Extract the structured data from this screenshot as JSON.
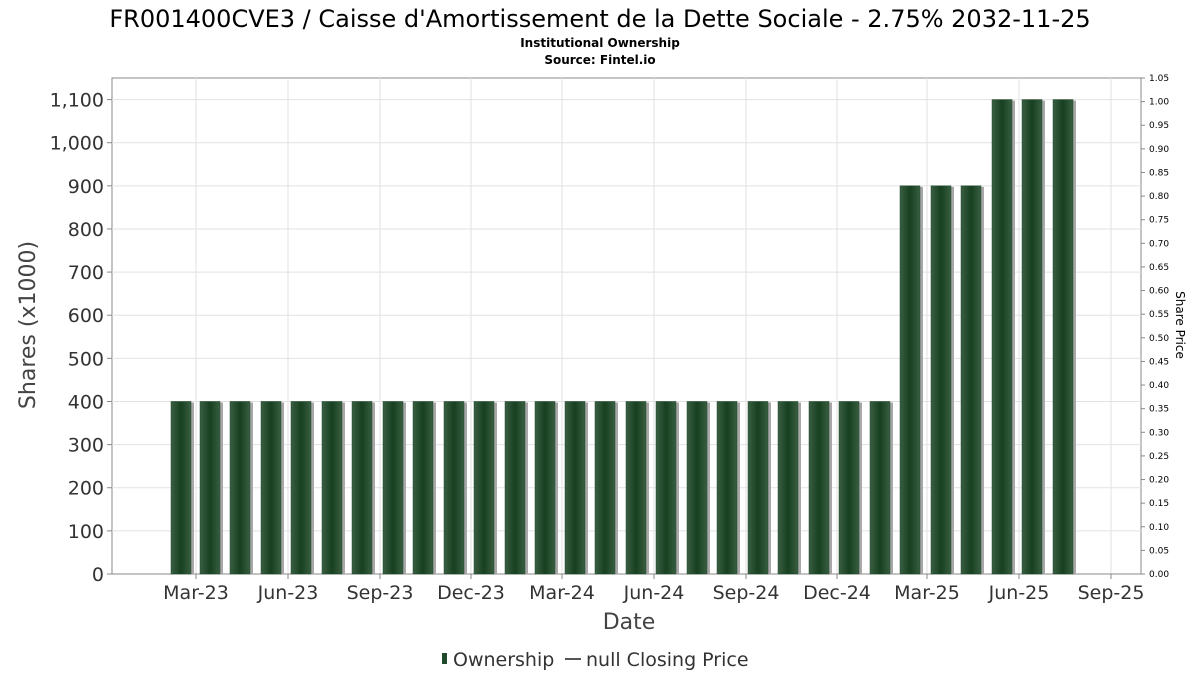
{
  "colors": {
    "bar": "#1f4a2b",
    "bar_light": "#3a5e43",
    "bar_shadow": "#a8a8a8",
    "grid": "#e2e2e2",
    "plot_border": "#888888",
    "background": "#ffffff"
  },
  "chart_data": {
    "type": "bar",
    "title": "FR001400CVE3 / Caisse d'Amortissement de la Dette Sociale - 2.75% 2032-11-25",
    "subtitle_lines": [
      "Institutional Ownership",
      "Source: Fintel.io"
    ],
    "xlabel": "Date",
    "ylabel": "Shares (x1000)",
    "y2label": "Share Price",
    "ylim": [
      0,
      1150
    ],
    "y2lim": [
      0,
      1.05
    ],
    "y_ticks": [
      0,
      100,
      200,
      300,
      400,
      500,
      600,
      700,
      800,
      900,
      1000,
      1100
    ],
    "y_tick_labels": [
      "0",
      "100",
      "200",
      "300",
      "400",
      "500",
      "600",
      "700",
      "800",
      "900",
      "1,000",
      "1,100"
    ],
    "y2_ticks": [
      0.0,
      0.05,
      0.1,
      0.15,
      0.2,
      0.25,
      0.3,
      0.35,
      0.4,
      0.45,
      0.5,
      0.55,
      0.6,
      0.65,
      0.7,
      0.75,
      0.8,
      0.85,
      0.9,
      0.95,
      1.0,
      1.05
    ],
    "y2_tick_labels": [
      "0.00",
      "0.05",
      "0.10",
      "0.15",
      "0.20",
      "0.25",
      "0.30",
      "0.35",
      "0.40",
      "0.45",
      "0.50",
      "0.55",
      "0.60",
      "0.65",
      "0.70",
      "0.75",
      "0.80",
      "0.85",
      "0.90",
      "0.95",
      "1.00",
      "1.05"
    ],
    "x_range": [
      "2022-12-07",
      "2025-10-01"
    ],
    "x_tick_dates": [
      "2023-03-01",
      "2023-06-01",
      "2023-09-01",
      "2023-12-01",
      "2024-03-01",
      "2024-06-01",
      "2024-09-01",
      "2024-12-01",
      "2025-03-01",
      "2025-06-01",
      "2025-09-01"
    ],
    "x_tick_labels": [
      "Mar-23",
      "Jun-23",
      "Sep-23",
      "Dec-23",
      "Mar-24",
      "Jun-24",
      "Sep-24",
      "Dec-24",
      "Mar-25",
      "Jun-25",
      "Sep-25"
    ],
    "grid": true,
    "legend_position": "bottom-center",
    "legend": [
      {
        "name": "Ownership",
        "marker": "bar"
      },
      {
        "name": "null Closing Price",
        "marker": "line"
      }
    ],
    "series": [
      {
        "name": "Ownership",
        "dates": [
          "2023-02-14",
          "2023-03-15",
          "2023-04-14",
          "2023-05-15",
          "2023-06-14",
          "2023-07-15",
          "2023-08-14",
          "2023-09-14",
          "2023-10-14",
          "2023-11-14",
          "2023-12-14",
          "2024-01-14",
          "2024-02-13",
          "2024-03-14",
          "2024-04-13",
          "2024-05-14",
          "2024-06-13",
          "2024-07-14",
          "2024-08-13",
          "2024-09-13",
          "2024-10-13",
          "2024-11-13",
          "2024-12-13",
          "2025-01-13",
          "2025-02-12",
          "2025-03-15",
          "2025-04-14",
          "2025-05-15",
          "2025-06-14",
          "2025-07-15"
        ],
        "values": [
          400,
          400,
          400,
          400,
          400,
          400,
          400,
          400,
          400,
          400,
          400,
          400,
          400,
          400,
          400,
          400,
          400,
          400,
          400,
          400,
          400,
          400,
          400,
          400,
          900,
          900,
          900,
          1100,
          1100,
          1100
        ]
      }
    ]
  }
}
